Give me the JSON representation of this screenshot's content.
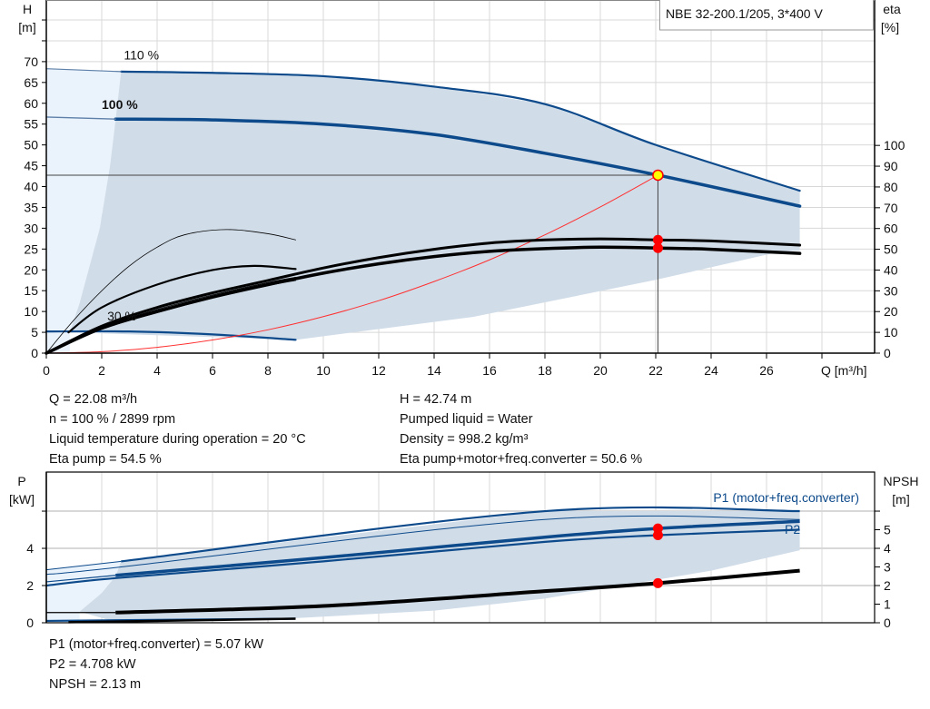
{
  "title_box": "NBE 32-200.1/205, 3*400 V",
  "colors": {
    "curve_blue": "#0d4a8b",
    "shade": "#d0dce8",
    "shade_light": "#eaf3fc",
    "grid": "#d8d8d8",
    "system_curve": "#ff3030",
    "point": "#ff0000",
    "op_point_fill": "#ffff00"
  },
  "chart_data": [
    {
      "type": "line",
      "name_hint": "head-efficiency",
      "xlabel": "Q [m³/h]",
      "ylabel_left": [
        "H",
        "[m]"
      ],
      "ylabel_right": [
        "eta",
        "[%]"
      ],
      "x_ticks": [
        0,
        2,
        4,
        6,
        8,
        10,
        12,
        14,
        16,
        18,
        20,
        22,
        24,
        26
      ],
      "y_left_ticks": [
        0,
        5,
        10,
        15,
        20,
        25,
        30,
        35,
        40,
        45,
        50,
        55,
        60,
        65,
        70
      ],
      "y_right_ticks": [
        0,
        10,
        20,
        30,
        40,
        50,
        60,
        70,
        80,
        90,
        100
      ],
      "xlim": [
        0,
        30
      ],
      "ylim_left": [
        0,
        84.8
      ],
      "ylim_right": [
        0,
        170
      ],
      "grid": true,
      "speed_labels": [
        {
          "text": "110 %",
          "q": 2.8,
          "h": 70.5,
          "bold": false
        },
        {
          "text": "100 %",
          "q": 2.0,
          "h": 58.6,
          "bold": true
        },
        {
          "text": "30 %",
          "q": 2.2,
          "h": 7.8,
          "bold": false
        }
      ],
      "region": {
        "upper": [
          [
            2.7,
            67.6
          ],
          [
            6,
            67.3
          ],
          [
            10,
            66.5
          ],
          [
            14,
            64
          ],
          [
            18,
            59.8
          ],
          [
            22,
            50
          ],
          [
            27.2,
            39
          ]
        ],
        "lower": [
          [
            27.2,
            24.6
          ],
          [
            26.5,
            24.4
          ],
          [
            22,
            17.6
          ],
          [
            15.4,
            8.7
          ],
          [
            9,
            3.2
          ]
        ],
        "left": [
          [
            0.85,
            5
          ],
          [
            1.2,
            12
          ],
          [
            1.93,
            30
          ],
          [
            2.3,
            45
          ],
          [
            2.5,
            56
          ],
          [
            2.7,
            67.6
          ]
        ],
        "light_top": 68.3
      },
      "series": [
        {
          "id": "h-110",
          "axis": "H",
          "width": 2.2,
          "color": "#0d4a8b",
          "points": [
            [
              2.7,
              67.6
            ],
            [
              6,
              67.3
            ],
            [
              10,
              66.5
            ],
            [
              14,
              64
            ],
            [
              18,
              59.8
            ],
            [
              22,
              50
            ],
            [
              27.2,
              39
            ]
          ]
        },
        {
          "id": "h-110-ext",
          "axis": "H",
          "width": 1.2,
          "color": "#5d7fa8",
          "points": [
            [
              0,
              68.3
            ],
            [
              2.7,
              67.6
            ]
          ]
        },
        {
          "id": "h-100",
          "axis": "H",
          "width": 3.5,
          "color": "#0d4a8b",
          "points": [
            [
              2.5,
              56.2
            ],
            [
              6,
              56
            ],
            [
              10,
              55
            ],
            [
              14,
              52.5
            ],
            [
              18,
              48
            ],
            [
              22.08,
              42.74
            ],
            [
              27.2,
              35.3
            ]
          ]
        },
        {
          "id": "h-100-ext",
          "axis": "H",
          "width": 1.4,
          "color": "#5d7fa8",
          "points": [
            [
              0,
              56.7
            ],
            [
              2.5,
              56.2
            ]
          ]
        },
        {
          "id": "h-30",
          "axis": "H",
          "width": 2.2,
          "color": "#0d4a8b",
          "points": [
            [
              0,
              5.2
            ],
            [
              3,
              5.2
            ],
            [
              6,
              4.5
            ],
            [
              9,
              3.2
            ]
          ]
        },
        {
          "id": "system-curve",
          "axis": "H",
          "width": 1,
          "color": "#ff3030",
          "points": [
            [
              0,
              0
            ],
            [
              2,
              0.35
            ],
            [
              4,
              1.4
            ],
            [
              6,
              3.16
            ],
            [
              8,
              5.6
            ],
            [
              10,
              8.77
            ],
            [
              12,
              12.6
            ],
            [
              14,
              17.2
            ],
            [
              16,
              22.4
            ],
            [
              18,
              28.4
            ],
            [
              20,
              35.1
            ],
            [
              22.08,
              42.74
            ]
          ]
        },
        {
          "id": "eta-pump",
          "axis": "eta",
          "width": 3,
          "color": "#000",
          "points": [
            [
              0,
              0
            ],
            [
              2,
              13
            ],
            [
              4,
              22
            ],
            [
              6,
              29
            ],
            [
              8,
              35
            ],
            [
              10,
              41
            ],
            [
              12,
              46
            ],
            [
              14,
              50
            ],
            [
              16,
              53
            ],
            [
              18,
              54.5
            ],
            [
              20,
              55
            ],
            [
              22.08,
              54.5
            ],
            [
              24,
              54
            ],
            [
              27.2,
              52
            ]
          ]
        },
        {
          "id": "eta-total",
          "axis": "eta",
          "width": 3.5,
          "color": "#000",
          "points": [
            [
              0,
              0
            ],
            [
              2,
              12
            ],
            [
              4,
              20
            ],
            [
              6,
              27
            ],
            [
              8,
              33
            ],
            [
              10,
              38.5
            ],
            [
              12,
              43
            ],
            [
              14,
              46.5
            ],
            [
              16,
              49
            ],
            [
              18,
              50.3
            ],
            [
              20,
              51
            ],
            [
              22.08,
              50.6
            ],
            [
              24,
              50
            ],
            [
              27.2,
              48
            ]
          ]
        },
        {
          "id": "eta-thin-a",
          "axis": "eta",
          "width": 1,
          "color": "#000",
          "points": [
            [
              0,
              0
            ],
            [
              2,
              12.5
            ],
            [
              4,
              21
            ],
            [
              6,
              28
            ],
            [
              8,
              34
            ],
            [
              9,
              36.5
            ]
          ]
        },
        {
          "id": "eta-thin-b",
          "axis": "eta",
          "width": 1,
          "color": "#000",
          "points": [
            [
              0,
              0
            ],
            [
              2,
              11.5
            ],
            [
              4,
              19.5
            ],
            [
              6,
              26.5
            ],
            [
              8,
              32.5
            ],
            [
              9,
              35
            ]
          ]
        },
        {
          "id": "eta-low-speed",
          "axis": "eta",
          "width": 2.2,
          "color": "#000",
          "points": [
            [
              0.8,
              10
            ],
            [
              2,
              22
            ],
            [
              4,
              33
            ],
            [
              6,
              40
            ],
            [
              7.5,
              42
            ],
            [
              9,
              40.5
            ]
          ]
        },
        {
          "id": "eta-low-thin",
          "axis": "eta",
          "width": 0.8,
          "color": "#000",
          "points": [
            [
              0,
              0
            ],
            [
              1,
              16
            ],
            [
              2,
              30
            ],
            [
              3,
              42
            ],
            [
              4,
              51
            ],
            [
              5,
              57
            ],
            [
              6.5,
              59.5
            ],
            [
              8,
              57.5
            ],
            [
              9,
              54.5
            ]
          ]
        }
      ],
      "operating_point": {
        "q": 22.08,
        "h": 42.74,
        "eta_pump": 54.5,
        "eta_total": 50.6
      }
    },
    {
      "type": "line",
      "name_hint": "power-npsh",
      "ylabel_left": [
        "P",
        "[kW]"
      ],
      "ylabel_right": [
        "NPSH",
        "[m]"
      ],
      "y_left_ticks": [
        0,
        2,
        4
      ],
      "y_right_ticks": [
        0,
        1,
        2,
        3,
        4,
        5
      ],
      "ylim_left": [
        0,
        8.1
      ],
      "ylim_right": [
        0,
        8.1
      ],
      "grid": true,
      "labels": {
        "p1": "P1 (motor+freq.converter)",
        "p2": "P2"
      },
      "region": {
        "upper": [
          [
            2.7,
            3.3
          ],
          [
            18,
            6.0
          ],
          [
            27.2,
            6.0
          ]
        ],
        "lower": [
          [
            27.2,
            3.9
          ],
          [
            24,
            2.8
          ],
          [
            22,
            2.3
          ],
          [
            18,
            1.3
          ],
          [
            14,
            0.65
          ],
          [
            9,
            0.25
          ],
          [
            2.5,
            0.05
          ]
        ],
        "left": [
          [
            1.2,
            0.6
          ],
          [
            2,
            1.6
          ],
          [
            2.5,
            2.5
          ],
          [
            2.7,
            3.3
          ]
        ],
        "light_top": 2.85
      },
      "series": [
        {
          "id": "p1-110",
          "axis": "P",
          "width": 2.2,
          "color": "#0d4a8b",
          "points": [
            [
              2.7,
              3.3
            ],
            [
              18,
              6.0
            ],
            [
              27.2,
              6.0
            ]
          ]
        },
        {
          "id": "p1-110-ext",
          "axis": "P",
          "width": 1,
          "color": "#0d4a8b",
          "points": [
            [
              0,
              2.85
            ],
            [
              2.7,
              3.3
            ]
          ]
        },
        {
          "id": "p2-110",
          "axis": "P",
          "width": 1,
          "color": "#0d4a8b",
          "points": [
            [
              0,
              2.6
            ],
            [
              2.7,
              3.0
            ],
            [
              18,
              5.55
            ],
            [
              27.2,
              5.55
            ]
          ]
        },
        {
          "id": "p1-100",
          "axis": "P",
          "width": 3.5,
          "color": "#0d4a8b",
          "points": [
            [
              2.5,
              2.55
            ],
            [
              10,
              3.5
            ],
            [
              18,
              4.6
            ],
            [
              22.08,
              5.07
            ],
            [
              27.2,
              5.45
            ]
          ]
        },
        {
          "id": "p1-100-ext",
          "axis": "P",
          "width": 1.2,
          "color": "#0d4a8b",
          "points": [
            [
              0,
              2.2
            ],
            [
              2.5,
              2.55
            ]
          ]
        },
        {
          "id": "p2-100",
          "axis": "P",
          "width": 2.2,
          "color": "#0d4a8b",
          "points": [
            [
              0,
              2.0
            ],
            [
              2.5,
              2.4
            ],
            [
              10,
              3.3
            ],
            [
              18,
              4.35
            ],
            [
              22.08,
              4.708
            ],
            [
              27.2,
              5.0
            ]
          ]
        },
        {
          "id": "npsh-100",
          "axis": "NPSH",
          "width": 4,
          "color": "#000",
          "points": [
            [
              2.5,
              0.55
            ],
            [
              10,
              0.9
            ],
            [
              18,
              1.7
            ],
            [
              22.08,
              2.13
            ],
            [
              27.2,
              2.8
            ]
          ]
        },
        {
          "id": "npsh-100-ext",
          "axis": "NPSH",
          "width": 1.2,
          "color": "#000",
          "points": [
            [
              0,
              0.55
            ],
            [
              2.5,
              0.55
            ]
          ]
        },
        {
          "id": "p-low",
          "axis": "P",
          "width": 2.2,
          "color": "#0d4a8b",
          "points": [
            [
              0,
              0.1
            ],
            [
              9,
              0.22
            ]
          ]
        },
        {
          "id": "npsh-low",
          "axis": "NPSH",
          "width": 2.5,
          "color": "#000",
          "points": [
            [
              0.8,
              0.03
            ],
            [
              9,
              0.22
            ]
          ]
        }
      ],
      "operating_point": {
        "q": 22.08,
        "p1": 5.07,
        "p2": 4.708,
        "npsh": 2.13
      }
    }
  ],
  "results_top": {
    "left": [
      "Q = 22.08 m³/h",
      "n = 100 % / 2899 rpm",
      "Liquid temperature during operation = 20 °C",
      "Eta pump = 54.5 %"
    ],
    "right": [
      "H = 42.74 m",
      "Pumped liquid = Water",
      "Density = 998.2 kg/m³",
      "Eta pump+motor+freq.converter = 50.6 %"
    ]
  },
  "results_bottom": [
    "P1 (motor+freq.converter) = 5.07 kW",
    "P2 = 4.708 kW",
    "NPSH = 2.13 m"
  ]
}
